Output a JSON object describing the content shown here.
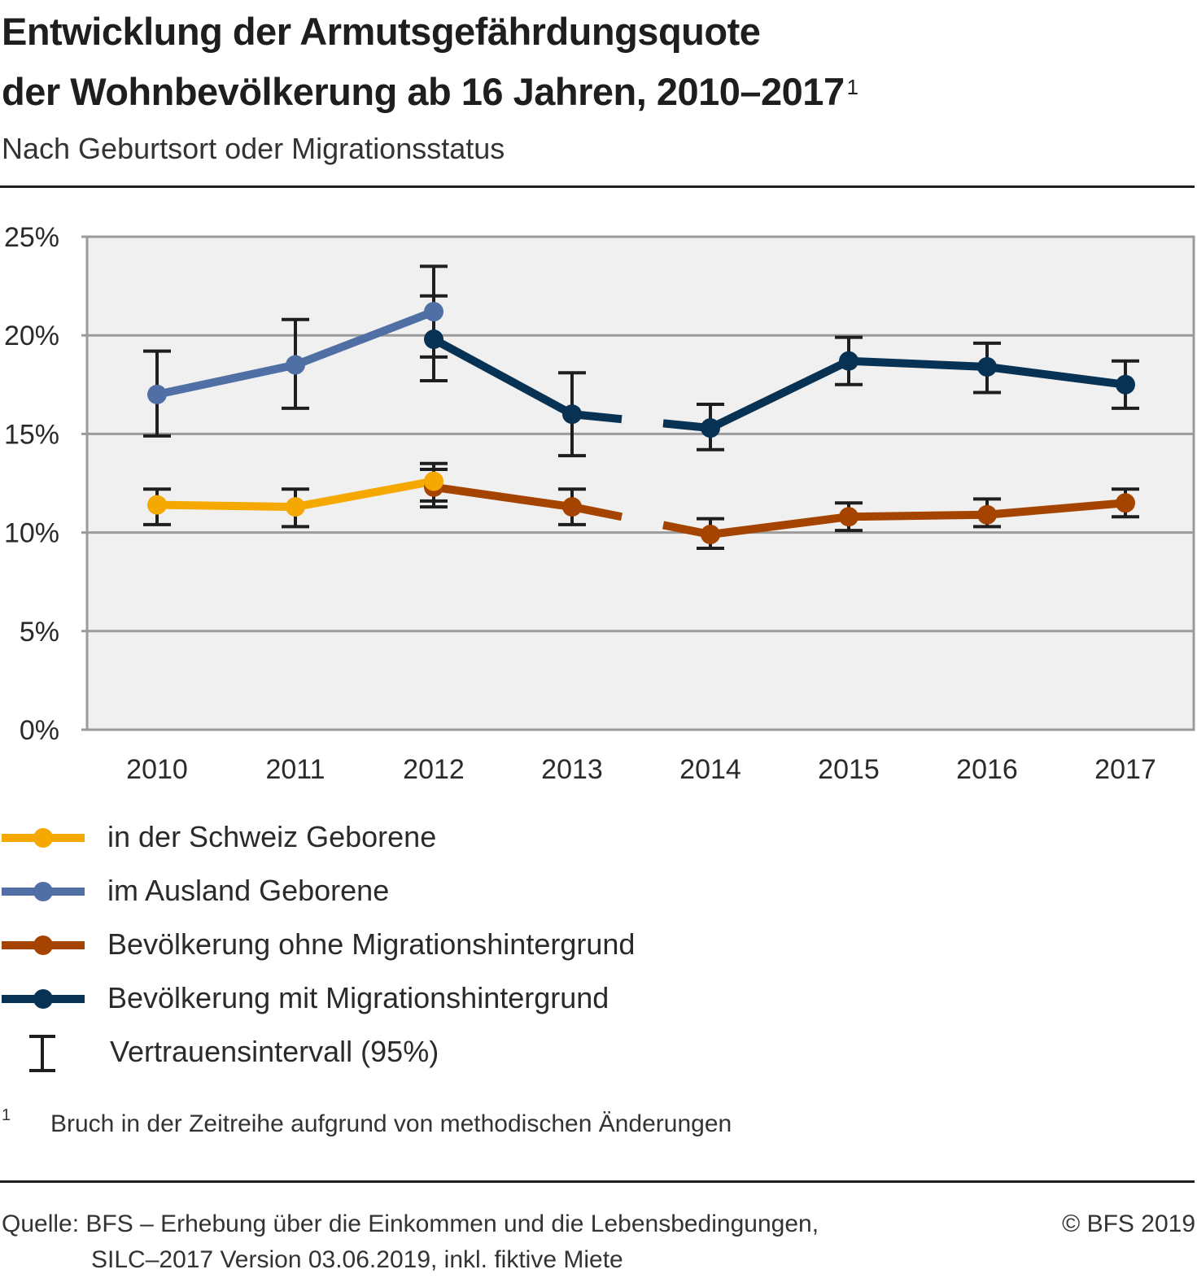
{
  "header": {
    "title_line1": "Entwicklung der Armutsgefährdungsquote",
    "title_line2": "der Wohnbevölkerung ab 16 Jahren, 2010–2017",
    "title_footnote_ref": "1",
    "subtitle": "Nach Geburtsort oder Migrationsstatus"
  },
  "legend": {
    "items": [
      {
        "label": "in der Schweiz Geborene",
        "color": "#f5a800"
      },
      {
        "label": "im Ausland Geborene",
        "color": "#5070a5"
      },
      {
        "label": "Bevölkerung ohne Migrationshintergrund",
        "color": "#a54400"
      },
      {
        "label": "Bevölkerung mit Migrationshintergrund",
        "color": "#083254"
      },
      {
        "label": "Vertrauensintervall (95%)",
        "color": "#1e1e1e"
      }
    ]
  },
  "footnote": {
    "mark": "1",
    "text": "Bruch in der Zeitreihe aufgrund von methodischen Änderungen"
  },
  "source": {
    "line1": "Quelle: BFS – Erhebung über die Einkommen und die Lebensbedingungen,",
    "line2": "SILC–2017 Version 03.06.2019, inkl. fiktive Miete",
    "copyright": "© BFS 2019"
  },
  "chart_data": {
    "type": "line",
    "title": "Entwicklung der Armutsgefährdungsquote der Wohnbevölkerung ab 16 Jahren, 2010–2017",
    "subtitle": "Nach Geburtsort oder Migrationsstatus",
    "xlabel": "",
    "ylabel": "",
    "x": [
      "2010",
      "2011",
      "2012",
      "2013",
      "2014",
      "2015",
      "2016",
      "2017"
    ],
    "ylim": [
      0,
      25
    ],
    "yticks": [
      0,
      5,
      10,
      15,
      20,
      25
    ],
    "ytick_labels": [
      "0%",
      "5%",
      "10%",
      "15%",
      "20%",
      "25%"
    ],
    "grid": true,
    "series_break": "between 2013 and 2014",
    "legend_position": "bottom",
    "colors": {
      "plot_background": "#f0f0f0",
      "grid": "#9b9b9b",
      "error_bar": "#1e1e1e"
    },
    "series": [
      {
        "name": "in der Schweiz Geborene",
        "color": "#f5a800",
        "values": [
          11.4,
          11.3,
          12.6,
          null,
          null,
          null,
          null,
          null
        ],
        "ci_low": [
          10.4,
          10.3,
          11.6,
          null,
          null,
          null,
          null,
          null
        ],
        "ci_high": [
          12.2,
          12.2,
          13.5,
          null,
          null,
          null,
          null,
          null
        ]
      },
      {
        "name": "im Ausland Geborene",
        "color": "#5070a5",
        "values": [
          17.0,
          18.5,
          21.2,
          null,
          null,
          null,
          null,
          null
        ],
        "ci_low": [
          14.9,
          16.3,
          17.7,
          null,
          null,
          null,
          null,
          null
        ],
        "ci_high": [
          19.2,
          20.8,
          23.5,
          null,
          null,
          null,
          null,
          null
        ]
      },
      {
        "name": "Bevölkerung ohne Migrationshintergrund",
        "color": "#a54400",
        "values": [
          null,
          null,
          12.3,
          11.3,
          9.9,
          10.8,
          10.9,
          11.5
        ],
        "ci_low": [
          null,
          null,
          11.3,
          10.4,
          9.2,
          10.1,
          10.3,
          10.8
        ],
        "ci_high": [
          null,
          null,
          13.2,
          12.2,
          10.7,
          11.5,
          11.7,
          12.2
        ]
      },
      {
        "name": "Bevölkerung mit Migrationshintergrund",
        "color": "#083254",
        "values": [
          null,
          null,
          19.8,
          16.0,
          15.3,
          18.7,
          18.4,
          17.5
        ],
        "ci_low": [
          null,
          null,
          18.9,
          13.9,
          14.2,
          17.5,
          17.1,
          16.3
        ],
        "ci_high": [
          null,
          null,
          22.0,
          18.1,
          16.5,
          19.9,
          19.6,
          18.7
        ]
      }
    ]
  }
}
